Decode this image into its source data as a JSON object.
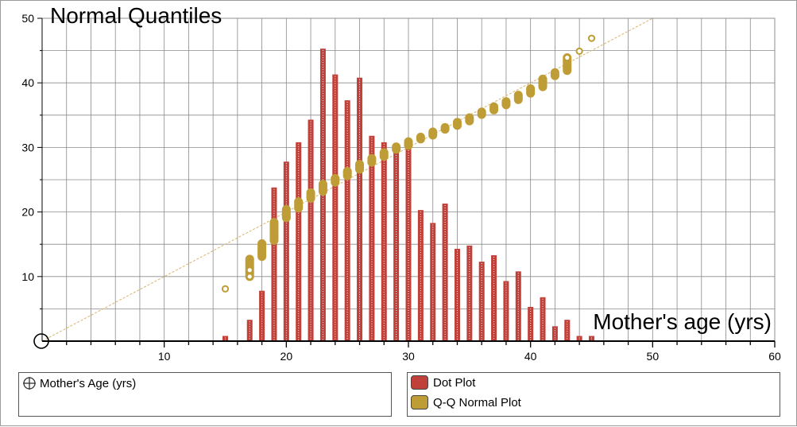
{
  "colors": {
    "dot_plot": "#c0403a",
    "qq_plot": "#bf9d36",
    "grid": "#8a8a8a",
    "ref_line": "#d8b36a"
  },
  "legend": {
    "attribute_label": "Mother's Age (yrs)",
    "attribute_icon": "crosshair-target-icon",
    "items": [
      {
        "label": "Dot Plot",
        "color": "#c0403a"
      },
      {
        "label": "Q-Q Normal Plot",
        "color": "#bf9d36"
      }
    ]
  },
  "chart_data": {
    "type": "bar",
    "title": "Normal Quantiles",
    "xlabel": "Mother's age (yrs)",
    "ylabel": "",
    "xlim": [
      0,
      60
    ],
    "ylim": [
      0,
      50
    ],
    "x_ticks": [
      10,
      20,
      30,
      40,
      50,
      60
    ],
    "y_ticks": [
      10,
      20,
      30,
      40,
      50
    ],
    "grid": true,
    "dot_plot": {
      "name": "Dot Plot",
      "x": [
        15,
        17,
        18,
        19,
        20,
        21,
        22,
        23,
        24,
        25,
        26,
        27,
        28,
        29,
        30,
        31,
        32,
        33,
        34,
        35,
        36,
        37,
        38,
        39,
        40,
        41,
        42,
        43,
        44,
        45
      ],
      "values": [
        0.8,
        3.3,
        7.8,
        23.8,
        27.8,
        30.8,
        34.3,
        45.3,
        41.3,
        37.3,
        40.8,
        31.8,
        30.8,
        29.8,
        29.8,
        20.3,
        18.3,
        21.3,
        14.3,
        14.8,
        12.3,
        13.3,
        9.3,
        10.8,
        5.3,
        6.8,
        2.3,
        3.3,
        0.8,
        0.8
      ]
    },
    "qq_normal_plot": {
      "name": "Q-Q Normal Plot",
      "points": [
        {
          "x": 15,
          "y_min": 8.1,
          "y_max": 8.1
        },
        {
          "x": 17,
          "y_min": 10.0,
          "y_max": 12.7
        },
        {
          "x": 18,
          "y_min": 13.1,
          "y_max": 15.1
        },
        {
          "x": 19,
          "y_min": 15.6,
          "y_max": 18.4
        },
        {
          "x": 20,
          "y_min": 19.1,
          "y_max": 20.4
        },
        {
          "x": 21,
          "y_min": 20.6,
          "y_max": 21.6
        },
        {
          "x": 22,
          "y_min": 22.1,
          "y_max": 23.0
        },
        {
          "x": 23,
          "y_min": 23.2,
          "y_max": 24.3
        },
        {
          "x": 24,
          "y_min": 24.6,
          "y_max": 25.2
        },
        {
          "x": 25,
          "y_min": 25.6,
          "y_max": 26.3
        },
        {
          "x": 26,
          "y_min": 26.6,
          "y_max": 27.4
        },
        {
          "x": 27,
          "y_min": 27.7,
          "y_max": 28.3
        },
        {
          "x": 28,
          "y_min": 28.6,
          "y_max": 29.2
        },
        {
          "x": 29,
          "y_min": 29.7,
          "y_max": 30.1
        },
        {
          "x": 30,
          "y_min": 30.3,
          "y_max": 30.9
        },
        {
          "x": 31,
          "y_min": 31.3,
          "y_max": 31.6
        },
        {
          "x": 32,
          "y_min": 31.9,
          "y_max": 32.4
        },
        {
          "x": 33,
          "y_min": 32.8,
          "y_max": 33.1
        },
        {
          "x": 34,
          "y_min": 33.4,
          "y_max": 33.9
        },
        {
          "x": 35,
          "y_min": 34.1,
          "y_max": 34.6
        },
        {
          "x": 36,
          "y_min": 35.1,
          "y_max": 35.5
        },
        {
          "x": 37,
          "y_min": 35.8,
          "y_max": 36.3
        },
        {
          "x": 38,
          "y_min": 36.6,
          "y_max": 37.1
        },
        {
          "x": 39,
          "y_min": 37.4,
          "y_max": 38.1
        },
        {
          "x": 40,
          "y_min": 38.4,
          "y_max": 39.1
        },
        {
          "x": 41,
          "y_min": 39.4,
          "y_max": 40.6
        },
        {
          "x": 42,
          "y_min": 41.1,
          "y_max": 41.6
        },
        {
          "x": 43,
          "y_min": 41.9,
          "y_max": 43.9
        },
        {
          "x": 44,
          "y_min": 44.9,
          "y_max": 44.9
        },
        {
          "x": 45,
          "y_min": 46.9,
          "y_max": 46.9
        }
      ],
      "hollow_x": [
        15,
        17,
        43,
        44,
        45
      ]
    },
    "reference_line": {
      "from": [
        0,
        0
      ],
      "to": [
        50,
        50
      ]
    }
  }
}
